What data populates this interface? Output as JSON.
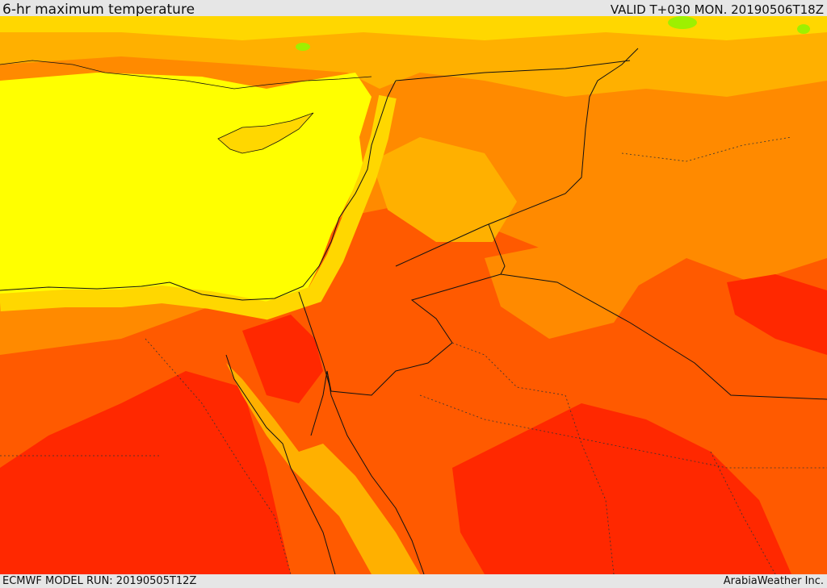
{
  "header": {
    "title": "6-hr maximum temperature",
    "valid_time": "VALID T+030 MON. 20190506T18Z"
  },
  "footer": {
    "model_run": "ECMWF MODEL RUN: 20190505T12Z",
    "credit": "ArabiaWeather Inc."
  },
  "map": {
    "colors": {
      "sea_yellow": "#ffff00",
      "gold": "#ffd700",
      "light_orange": "#ffb000",
      "orange": "#ff8a00",
      "deep_orange": "#ff5a00",
      "red": "#ff2800",
      "green": "#9ef000",
      "border": "#111111"
    }
  }
}
